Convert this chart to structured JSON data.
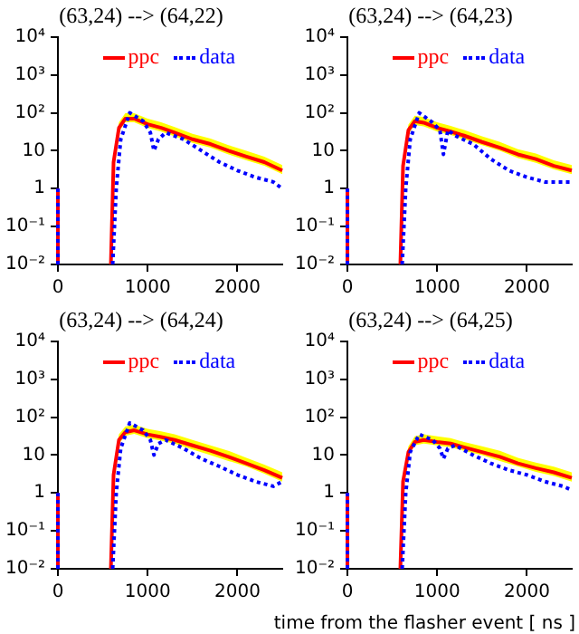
{
  "chart_data": [
    {
      "type": "line",
      "title": "(63,24) --> (64,22)",
      "log": true,
      "grid": false,
      "legend": "top",
      "marker": "none",
      "xlim": [
        0,
        2500
      ],
      "xticks": [
        0,
        1000,
        2000
      ],
      "ylim": [
        0.01,
        10000
      ],
      "yticks": [
        {
          "value": 0.01,
          "label": "10⁻²"
        },
        {
          "value": 0.1,
          "label": "10⁻¹"
        },
        {
          "value": 1,
          "label": "1"
        },
        {
          "value": 10,
          "label": "10"
        },
        {
          "value": 100,
          "label": "10²"
        },
        {
          "value": 1000,
          "label": "10³"
        },
        {
          "value": 10000,
          "label": "10⁴"
        }
      ],
      "series": [
        {
          "name": "ppc",
          "color": "#ff0000",
          "line_style": "solid",
          "x": [
            0,
            0,
            300,
            590,
            620,
            680,
            750,
            850,
            1000,
            1150,
            1300,
            1500,
            1700,
            1900,
            2100,
            2300,
            2500
          ],
          "values": [
            0.01,
            1,
            null,
            0.01,
            5,
            40,
            70,
            70,
            50,
            40,
            30,
            20,
            15,
            10,
            7,
            5,
            3
          ],
          "lower": [
            null,
            null,
            null,
            null,
            4,
            32,
            56,
            56,
            40,
            32,
            24,
            16,
            12,
            8,
            5.6,
            4,
            2.4
          ],
          "upper": [
            null,
            null,
            null,
            null,
            7,
            56,
            98,
            98,
            70,
            56,
            42,
            28,
            21,
            14,
            10,
            7,
            4.2
          ]
        },
        {
          "name": "data",
          "color": "#0000ff",
          "line_style": "dotted",
          "x": [
            0,
            0,
            300,
            610,
            650,
            700,
            800,
            950,
            1030,
            1070,
            1120,
            1200,
            1400,
            1600,
            1800,
            2000,
            2200,
            2400,
            2500
          ],
          "values": [
            0.01,
            1,
            null,
            0.01,
            1,
            20,
            100,
            60,
            30,
            10,
            20,
            30,
            20,
            10,
            5,
            3,
            2,
            1.5,
            1
          ]
        }
      ]
    },
    {
      "type": "line",
      "title": "(63,24) --> (64,23)",
      "log": true,
      "grid": false,
      "legend": "top",
      "marker": "none",
      "xlim": [
        0,
        2500
      ],
      "xticks": [
        0,
        1000,
        2000
      ],
      "ylim": [
        0.01,
        10000
      ],
      "yticks": [
        {
          "value": 0.01,
          "label": "10⁻²"
        },
        {
          "value": 0.1,
          "label": "10⁻¹"
        },
        {
          "value": 1,
          "label": "1"
        },
        {
          "value": 10,
          "label": "10"
        },
        {
          "value": 100,
          "label": "10²"
        },
        {
          "value": 1000,
          "label": "10³"
        },
        {
          "value": 10000,
          "label": "10⁴"
        }
      ],
      "series": [
        {
          "name": "ppc",
          "color": "#ff0000",
          "line_style": "solid",
          "x": [
            0,
            0,
            300,
            590,
            620,
            680,
            750,
            850,
            1000,
            1150,
            1300,
            1500,
            1700,
            1900,
            2100,
            2300,
            2500
          ],
          "values": [
            0.01,
            1,
            null,
            0.01,
            4,
            35,
            60,
            55,
            40,
            32,
            25,
            17,
            12,
            8,
            6,
            4,
            3
          ],
          "lower": [
            null,
            null,
            null,
            null,
            3.2,
            28,
            48,
            44,
            32,
            26,
            20,
            14,
            10,
            6.4,
            4.8,
            3.2,
            2.4
          ],
          "upper": [
            null,
            null,
            null,
            null,
            5.6,
            49,
            84,
            77,
            56,
            45,
            35,
            24,
            17,
            11,
            8.4,
            5.6,
            4.2
          ]
        },
        {
          "name": "data",
          "color": "#0000ff",
          "line_style": "dotted",
          "x": [
            0,
            0,
            300,
            610,
            650,
            700,
            800,
            950,
            1030,
            1070,
            1120,
            1200,
            1400,
            1600,
            1800,
            2000,
            2200,
            2400,
            2500
          ],
          "values": [
            0.01,
            1,
            null,
            0.01,
            1,
            20,
            100,
            55,
            35,
            8,
            35,
            25,
            15,
            6,
            3,
            2,
            1.5,
            1.5,
            1.5
          ]
        }
      ]
    },
    {
      "type": "line",
      "title": "(63,24) --> (64,24)",
      "log": true,
      "grid": false,
      "legend": "top",
      "marker": "none",
      "xlim": [
        0,
        2500
      ],
      "xticks": [
        0,
        1000,
        2000
      ],
      "ylim": [
        0.01,
        10000
      ],
      "yticks": [
        {
          "value": 0.01,
          "label": "10⁻²"
        },
        {
          "value": 0.1,
          "label": "10⁻¹"
        },
        {
          "value": 1,
          "label": "1"
        },
        {
          "value": 10,
          "label": "10"
        },
        {
          "value": 100,
          "label": "10²"
        },
        {
          "value": 1000,
          "label": "10³"
        },
        {
          "value": 10000,
          "label": "10⁴"
        }
      ],
      "series": [
        {
          "name": "ppc",
          "color": "#ff0000",
          "line_style": "solid",
          "x": [
            0,
            0,
            300,
            590,
            620,
            680,
            750,
            850,
            1000,
            1150,
            1300,
            1500,
            1700,
            1900,
            2100,
            2300,
            2500
          ],
          "values": [
            0.01,
            1,
            null,
            0.01,
            3,
            25,
            40,
            45,
            35,
            30,
            25,
            18,
            13,
            9,
            6,
            4,
            2.5
          ],
          "lower": [
            null,
            null,
            null,
            null,
            2.4,
            20,
            32,
            36,
            28,
            24,
            20,
            14,
            10,
            7,
            5,
            3.2,
            2
          ],
          "upper": [
            null,
            null,
            null,
            null,
            4.2,
            35,
            56,
            63,
            49,
            42,
            35,
            25,
            18,
            13,
            8.4,
            5.6,
            3.5
          ]
        },
        {
          "name": "data",
          "color": "#0000ff",
          "line_style": "dotted",
          "x": [
            0,
            0,
            300,
            610,
            650,
            700,
            800,
            950,
            1030,
            1070,
            1120,
            1200,
            1400,
            1600,
            1800,
            2000,
            2200,
            2400,
            2500
          ],
          "values": [
            0.01,
            1,
            null,
            0.01,
            1,
            15,
            70,
            45,
            25,
            10,
            20,
            25,
            15,
            8,
            5,
            3,
            2,
            1.5,
            2
          ]
        }
      ]
    },
    {
      "type": "line",
      "title": "(63,24) --> (64,25)",
      "xlabel": "time from the flasher event [ ns ]",
      "log": true,
      "grid": false,
      "legend": "top",
      "marker": "none",
      "xlim": [
        0,
        2500
      ],
      "xticks": [
        0,
        1000,
        2000
      ],
      "ylim": [
        0.01,
        10000
      ],
      "yticks": [
        {
          "value": 0.01,
          "label": "10⁻²"
        },
        {
          "value": 0.1,
          "label": "10⁻¹"
        },
        {
          "value": 1,
          "label": "1"
        },
        {
          "value": 10,
          "label": "10"
        },
        {
          "value": 100,
          "label": "10²"
        },
        {
          "value": 1000,
          "label": "10³"
        },
        {
          "value": 10000,
          "label": "10⁴"
        }
      ],
      "series": [
        {
          "name": "ppc",
          "color": "#ff0000",
          "line_style": "solid",
          "x": [
            0,
            0,
            300,
            590,
            620,
            680,
            750,
            850,
            1000,
            1150,
            1300,
            1500,
            1700,
            1900,
            2100,
            2300,
            2500
          ],
          "values": [
            0.01,
            1,
            null,
            0.01,
            2,
            12,
            22,
            25,
            22,
            20,
            16,
            12,
            9,
            6,
            4.5,
            3.5,
            2.5
          ],
          "lower": [
            null,
            null,
            null,
            null,
            1.6,
            10,
            18,
            20,
            18,
            16,
            13,
            10,
            7,
            5,
            3.6,
            2.8,
            2
          ],
          "upper": [
            null,
            null,
            null,
            null,
            2.8,
            17,
            31,
            35,
            31,
            28,
            22,
            17,
            13,
            8.4,
            6.3,
            4.9,
            3.5
          ]
        },
        {
          "name": "data",
          "color": "#0000ff",
          "line_style": "dotted",
          "x": [
            0,
            0,
            300,
            610,
            650,
            700,
            800,
            950,
            1030,
            1070,
            1120,
            1200,
            1400,
            1600,
            1800,
            2000,
            2200,
            2400,
            2500
          ],
          "values": [
            0.01,
            1,
            null,
            0.01,
            1,
            12,
            35,
            25,
            15,
            8,
            15,
            18,
            10,
            6,
            4,
            3,
            2,
            1.5,
            1.2
          ]
        }
      ]
    }
  ]
}
